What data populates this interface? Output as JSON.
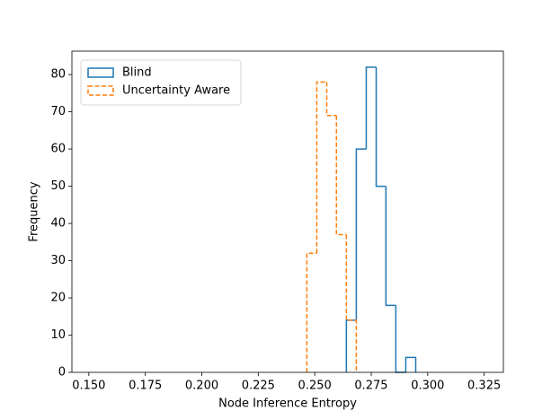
{
  "chart_data": {
    "type": "histogram",
    "histtype": "step",
    "x_label": "Node Inference Entropy",
    "y_label": "Frequency",
    "xlim": [
      0.1425,
      0.3335
    ],
    "ylim": [
      0,
      86.3
    ],
    "xticks": [
      {
        "value": 0.15,
        "label": "0.150"
      },
      {
        "value": 0.175,
        "label": "0.175"
      },
      {
        "value": 0.2,
        "label": "0.200"
      },
      {
        "value": 0.225,
        "label": "0.225"
      },
      {
        "value": 0.25,
        "label": "0.250"
      },
      {
        "value": 0.275,
        "label": "0.275"
      },
      {
        "value": 0.3,
        "label": "0.300"
      },
      {
        "value": 0.325,
        "label": "0.325"
      }
    ],
    "yticks": [
      0,
      10,
      20,
      30,
      40,
      50,
      60,
      70,
      80
    ],
    "legend": "upper left",
    "series": [
      {
        "name": "Blind",
        "color": "#1f77b4",
        "linestyle": "solid",
        "bins": [
          0.264,
          0.2684,
          0.2728,
          0.2772,
          0.2815,
          0.2859,
          0.2903,
          0.2947
        ],
        "values": [
          14,
          60,
          82,
          50,
          18,
          0,
          4
        ]
      },
      {
        "name": "Uncertainty Aware",
        "color": "#ff7f0e",
        "linestyle": "dashed",
        "bins": [
          0.2465,
          0.2509,
          0.2553,
          0.2596,
          0.264,
          0.2684
        ],
        "values": [
          32,
          78,
          69,
          37,
          14
        ]
      }
    ]
  }
}
